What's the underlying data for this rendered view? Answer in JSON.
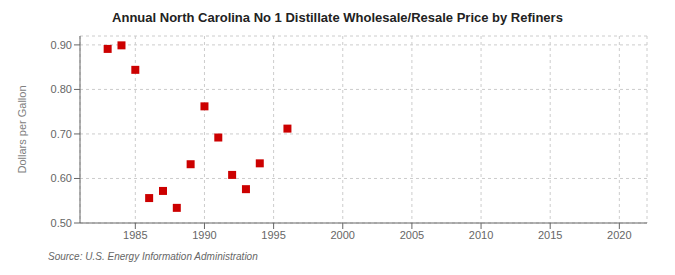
{
  "chart_data": {
    "type": "scatter",
    "title": "Annual North Carolina No 1 Distillate Wholesale/Resale Price by Refiners",
    "y_label": "Dollars per Gallon",
    "annotation": "Source: U.S. Energy Information Administration",
    "x": [
      1983,
      1984,
      1985,
      1986,
      1987,
      1988,
      1989,
      1990,
      1991,
      1992,
      1993,
      1994,
      1996
    ],
    "values": [
      0.891,
      0.899,
      0.844,
      0.556,
      0.572,
      0.534,
      0.632,
      0.762,
      0.692,
      0.608,
      0.576,
      0.634,
      0.712
    ],
    "color": "#cc0000",
    "marker": "square",
    "xlim": [
      1981,
      2022
    ],
    "ylim": [
      0.5,
      0.92
    ],
    "xticks": [
      1985,
      1990,
      1995,
      2000,
      2005,
      2010,
      2015,
      2020
    ],
    "yticks": [
      {
        "value": 0.5,
        "label": "0.50"
      },
      {
        "value": 0.6,
        "label": "0.60"
      },
      {
        "value": 0.7,
        "label": "0.70"
      },
      {
        "value": 0.8,
        "label": "0.80"
      },
      {
        "value": 0.9,
        "label": "0.90"
      }
    ],
    "grid": true
  }
}
